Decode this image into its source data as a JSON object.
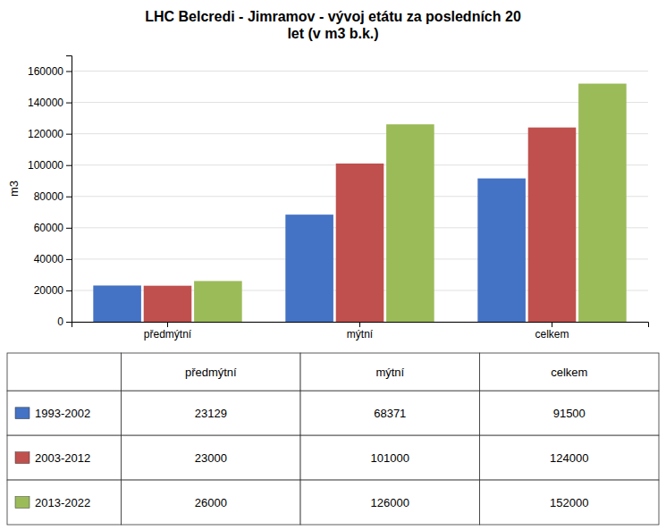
{
  "chart_data": {
    "type": "bar",
    "title": "LHC Belcredi - Jimramov - vývoj etátu za posledních 20\nlet (v m3 b.k.)",
    "y_label": "m3",
    "categories": [
      "předmýtní",
      "mýtní",
      "celkem"
    ],
    "series": [
      {
        "name": "1993-2002",
        "color": "#4472C4",
        "values": [
          23129,
          68371,
          91500
        ]
      },
      {
        "name": "2003-2012",
        "color": "#C0504D",
        "values": [
          23000,
          101000,
          124000
        ]
      },
      {
        "name": "2013-2022",
        "color": "#9BBB59",
        "values": [
          26000,
          126000,
          152000
        ]
      }
    ],
    "ylim": [
      0,
      170000
    ],
    "yticks": [
      0,
      20000,
      40000,
      60000,
      80000,
      100000,
      120000,
      140000,
      160000
    ],
    "grid": true
  }
}
